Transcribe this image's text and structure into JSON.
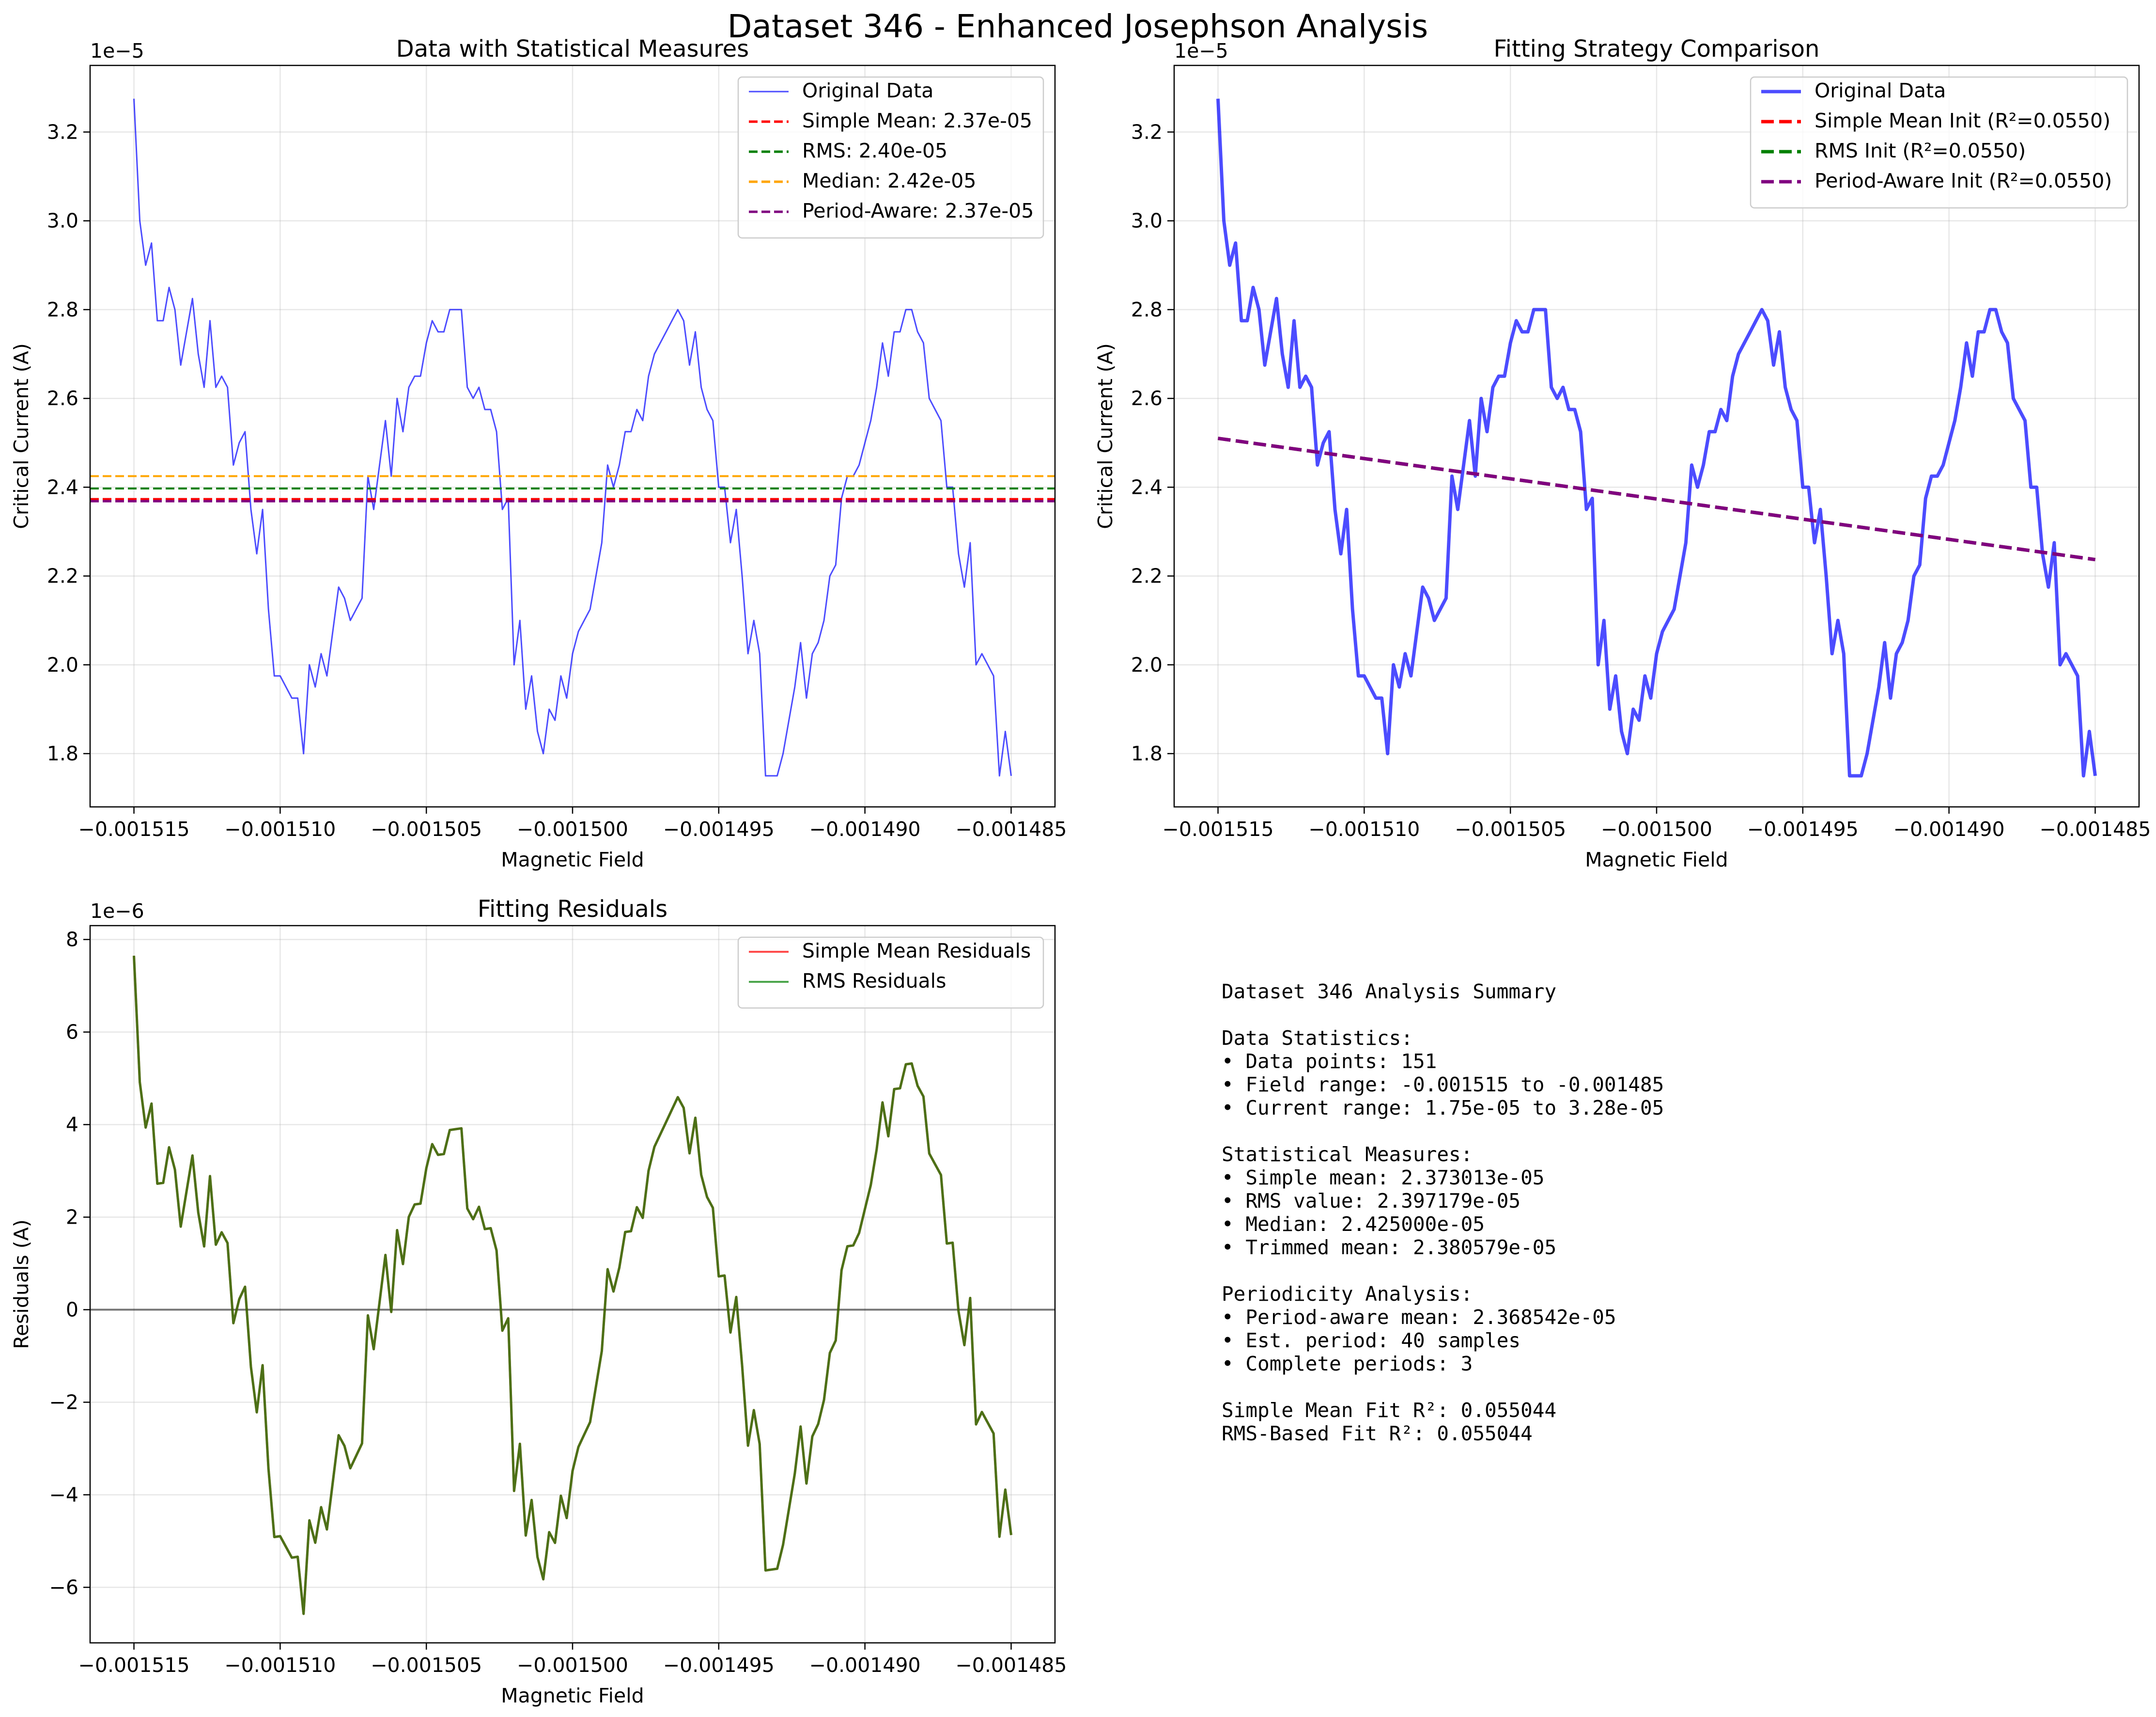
{
  "figure": {
    "title": "Dataset 346 - Enhanced Josephson Analysis"
  },
  "axes_colors": {
    "original": "#0000ff",
    "simple_mean": "#ff0000",
    "rms": "#008000",
    "median": "#ffa500",
    "period_aware": "#800080",
    "residual_simple": "#ff0000",
    "residual_rms": "#008000",
    "grid": "#b0b0b0",
    "zero_line": "#000000"
  },
  "chart_data": [
    {
      "type": "line",
      "title": "Data with Statistical Measures",
      "xlabel": "Magnetic Field",
      "ylabel": "Critical Current (A)",
      "offset_label": "1e−5",
      "xlim": [
        -0.0015165,
        -0.0014835
      ],
      "ylim": [
        1.68e-05,
        3.35e-05
      ],
      "xticks": [
        -0.001515,
        -0.00151,
        -0.001505,
        -0.0015,
        -0.001495,
        -0.00149,
        -0.001485
      ],
      "xtick_labels": [
        "−0.001515",
        "−0.001510",
        "−0.001505",
        "−0.001500",
        "−0.001495",
        "−0.001490",
        "−0.001485"
      ],
      "yticks": [
        1.8e-05,
        2e-05,
        2.2e-05,
        2.4e-05,
        2.6e-05,
        2.8e-05,
        3e-05,
        3.2e-05
      ],
      "ytick_labels": [
        "1.8",
        "2.0",
        "2.2",
        "2.4",
        "2.6",
        "2.8",
        "3.0",
        "3.2"
      ],
      "grid": true,
      "legend_position": "top-right",
      "series": [
        {
          "name": "Original Data",
          "kind": "data",
          "color": "#0000ff"
        },
        {
          "name": "Simple Mean: 2.37e-05",
          "kind": "hline",
          "value": 2.373013e-05,
          "color": "#ff0000"
        },
        {
          "name": "RMS: 2.40e-05",
          "kind": "hline",
          "value": 2.397179e-05,
          "color": "#008000"
        },
        {
          "name": "Median: 2.42e-05",
          "kind": "hline",
          "value": 2.425e-05,
          "color": "#ffa500"
        },
        {
          "name": "Period-Aware: 2.37e-05",
          "kind": "hline",
          "value": 2.368542e-05,
          "color": "#800080"
        }
      ]
    },
    {
      "type": "line",
      "title": "Fitting Strategy Comparison",
      "xlabel": "Magnetic Field",
      "ylabel": "Critical Current (A)",
      "offset_label": "1e−5",
      "xlim": [
        -0.0015165,
        -0.0014835
      ],
      "ylim": [
        1.68e-05,
        3.35e-05
      ],
      "xticks": [
        -0.001515,
        -0.00151,
        -0.001505,
        -0.0015,
        -0.001495,
        -0.00149,
        -0.001485
      ],
      "xtick_labels": [
        "−0.001515",
        "−0.001510",
        "−0.001505",
        "−0.001500",
        "−0.001495",
        "−0.001490",
        "−0.001485"
      ],
      "yticks": [
        1.8e-05,
        2e-05,
        2.2e-05,
        2.4e-05,
        2.6e-05,
        2.8e-05,
        3e-05,
        3.2e-05
      ],
      "ytick_labels": [
        "1.8",
        "2.0",
        "2.2",
        "2.4",
        "2.6",
        "2.8",
        "3.0",
        "3.2"
      ],
      "grid": true,
      "legend_position": "top-right",
      "series": [
        {
          "name": "Original Data",
          "kind": "data",
          "color": "#0000ff"
        },
        {
          "name": "Simple Mean Init (R²=0.0550)",
          "kind": "fit",
          "y_start": 2.51e-05,
          "y_end": 2.237e-05,
          "color": "#ff0000"
        },
        {
          "name": "RMS Init (R²=0.0550)",
          "kind": "fit",
          "y_start": 2.51e-05,
          "y_end": 2.237e-05,
          "color": "#008000"
        },
        {
          "name": "Period-Aware Init (R²=0.0550)",
          "kind": "fit",
          "y_start": 2.51e-05,
          "y_end": 2.237e-05,
          "color": "#800080"
        }
      ]
    },
    {
      "type": "line",
      "title": "Fitting Residuals",
      "xlabel": "Magnetic Field",
      "ylabel": "Residuals (A)",
      "offset_label": "1e−6",
      "xlim": [
        -0.0015165,
        -0.0014835
      ],
      "ylim": [
        -7.2e-06,
        8.3e-06
      ],
      "xticks": [
        -0.001515,
        -0.00151,
        -0.001505,
        -0.0015,
        -0.001495,
        -0.00149,
        -0.001485
      ],
      "xtick_labels": [
        "−0.001515",
        "−0.001510",
        "−0.001505",
        "−0.001500",
        "−0.001495",
        "−0.001490",
        "−0.001485"
      ],
      "yticks": [
        -6e-06,
        -4e-06,
        -2e-06,
        0,
        2e-06,
        4e-06,
        6e-06,
        8e-06
      ],
      "ytick_labels": [
        "−6",
        "−4",
        "−2",
        "0",
        "2",
        "4",
        "6",
        "8"
      ],
      "grid": true,
      "legend_position": "top-right",
      "series": [
        {
          "name": "Simple Mean Residuals",
          "kind": "residual",
          "color": "#ff0000"
        },
        {
          "name": "RMS Residuals",
          "kind": "residual",
          "color": "#008000"
        }
      ]
    }
  ],
  "measured_data": {
    "x_start": -0.001515,
    "x_end": -0.001485,
    "fit_line": {
      "y_start": 2.51e-05,
      "y_end": 2.237e-05
    },
    "y": [
      3.275e-05,
      3e-05,
      2.9e-05,
      2.95e-05,
      2.775e-05,
      2.775e-05,
      2.85e-05,
      2.8e-05,
      2.675e-05,
      2.75e-05,
      2.825e-05,
      2.7e-05,
      2.625e-05,
      2.775e-05,
      2.625e-05,
      2.65e-05,
      2.625e-05,
      2.45e-05,
      2.5e-05,
      2.525e-05,
      2.35e-05,
      2.25e-05,
      2.35e-05,
      2.125e-05,
      1.975e-05,
      1.975e-05,
      1.95e-05,
      1.925e-05,
      1.925e-05,
      1.8e-05,
      2e-05,
      1.95e-05,
      2.025e-05,
      1.975e-05,
      2.075e-05,
      2.175e-05,
      2.15e-05,
      2.1e-05,
      2.125e-05,
      2.15e-05,
      2.425e-05,
      2.35e-05,
      2.45e-05,
      2.55e-05,
      2.425e-05,
      2.6e-05,
      2.525e-05,
      2.625e-05,
      2.65e-05,
      2.65e-05,
      2.725e-05,
      2.775e-05,
      2.75e-05,
      2.75e-05,
      2.8e-05,
      2.8e-05,
      2.8e-05,
      2.625e-05,
      2.6e-05,
      2.625e-05,
      2.575e-05,
      2.575e-05,
      2.525e-05,
      2.35e-05,
      2.375e-05,
      2e-05,
      2.1e-05,
      1.9e-05,
      1.975e-05,
      1.85e-05,
      1.8e-05,
      1.9e-05,
      1.875e-05,
      1.975e-05,
      1.925e-05,
      2.025e-05,
      2.075e-05,
      2.1e-05,
      2.125e-05,
      2.2e-05,
      2.275e-05,
      2.45e-05,
      2.4e-05,
      2.45e-05,
      2.525e-05,
      2.525e-05,
      2.575e-05,
      2.55e-05,
      2.65e-05,
      2.7e-05,
      2.725e-05,
      2.75e-05,
      2.775e-05,
      2.8e-05,
      2.775e-05,
      2.675e-05,
      2.75e-05,
      2.625e-05,
      2.575e-05,
      2.55e-05,
      2.4e-05,
      2.4e-05,
      2.275e-05,
      2.35e-05,
      2.2e-05,
      2.025e-05,
      2.1e-05,
      2.025e-05,
      1.75e-05,
      1.75e-05,
      1.75e-05,
      1.8e-05,
      1.875e-05,
      1.95e-05,
      2.05e-05,
      1.925e-05,
      2.025e-05,
      2.05e-05,
      2.1e-05,
      2.2e-05,
      2.225e-05,
      2.375e-05,
      2.425e-05,
      2.425e-05,
      2.45e-05,
      2.5e-05,
      2.55e-05,
      2.625e-05,
      2.725e-05,
      2.65e-05,
      2.75e-05,
      2.75e-05,
      2.8e-05,
      2.8e-05,
      2.75e-05,
      2.725e-05,
      2.6e-05,
      2.575e-05,
      2.55e-05,
      2.4e-05,
      2.4e-05,
      2.25e-05,
      2.175e-05,
      2.275e-05,
      2e-05,
      2.025e-05,
      2e-05,
      1.975e-05,
      1.75e-05,
      1.85e-05,
      1.75e-05
    ]
  },
  "summary": {
    "lines": [
      "Dataset 346 Analysis Summary",
      "",
      "Data Statistics:",
      "• Data points: 151",
      "• Field range: -0.001515 to -0.001485",
      "• Current range: 1.75e-05 to 3.28e-05",
      "",
      "Statistical Measures:",
      "• Simple mean: 2.373013e-05",
      "• RMS value: 2.397179e-05",
      "• Median: 2.425000e-05",
      "• Trimmed mean: 2.380579e-05",
      "",
      "Periodicity Analysis:",
      "• Period-aware mean: 2.368542e-05",
      "• Est. period: 40 samples",
      "• Complete periods: 3",
      "",
      "Simple Mean Fit R²: 0.055044",
      "RMS-Based Fit R²: 0.055044"
    ]
  }
}
